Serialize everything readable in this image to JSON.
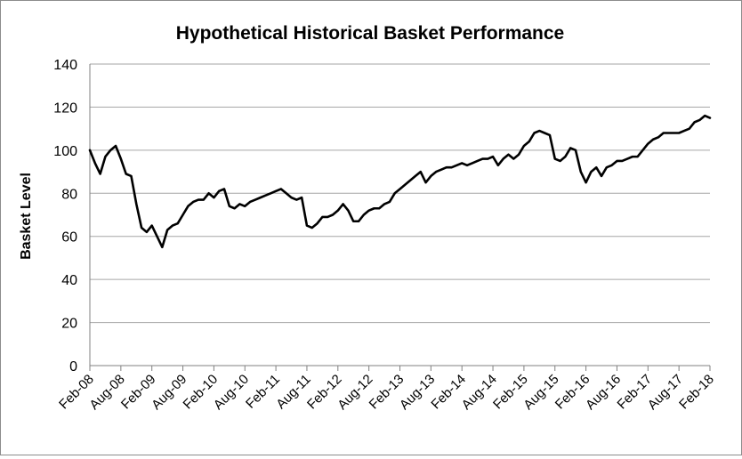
{
  "chart_data": {
    "type": "line",
    "title": "Hypothetical Historical Basket Performance",
    "xlabel": "",
    "ylabel": "Basket Level",
    "ylim": [
      0,
      140
    ],
    "yticks": [
      0,
      20,
      40,
      60,
      80,
      100,
      120,
      140
    ],
    "xticks": [
      "Feb-08",
      "Aug-08",
      "Feb-09",
      "Aug-09",
      "Feb-10",
      "Aug-10",
      "Feb-11",
      "Aug-11",
      "Feb-12",
      "Aug-12",
      "Feb-13",
      "Aug-13",
      "Feb-14",
      "Aug-14",
      "Feb-15",
      "Aug-15",
      "Feb-16",
      "Aug-16",
      "Feb-17",
      "Aug-17",
      "Feb-18"
    ],
    "grid": true,
    "line_color": "#000000",
    "series": [
      {
        "x": [
          "2008-02",
          "2008-03",
          "2008-04",
          "2008-05",
          "2008-06",
          "2008-07",
          "2008-08",
          "2008-09",
          "2008-10",
          "2008-11",
          "2008-12",
          "2009-01",
          "2009-02",
          "2009-03",
          "2009-04",
          "2009-05",
          "2009-06",
          "2009-07",
          "2009-08",
          "2009-09",
          "2009-10",
          "2009-11",
          "2009-12",
          "2010-01",
          "2010-02",
          "2010-03",
          "2010-04",
          "2010-05",
          "2010-06",
          "2010-07",
          "2010-08",
          "2010-09",
          "2010-10",
          "2010-11",
          "2010-12",
          "2011-01",
          "2011-02",
          "2011-03",
          "2011-04",
          "2011-05",
          "2011-06",
          "2011-07",
          "2011-08",
          "2011-09",
          "2011-10",
          "2011-11",
          "2011-12",
          "2012-01",
          "2012-02",
          "2012-03",
          "2012-04",
          "2012-05",
          "2012-06",
          "2012-07",
          "2012-08",
          "2012-09",
          "2012-10",
          "2012-11",
          "2012-12",
          "2013-01",
          "2013-02",
          "2013-03",
          "2013-04",
          "2013-05",
          "2013-06",
          "2013-07",
          "2013-08",
          "2013-09",
          "2013-10",
          "2013-11",
          "2013-12",
          "2014-01",
          "2014-02",
          "2014-03",
          "2014-04",
          "2014-05",
          "2014-06",
          "2014-07",
          "2014-08",
          "2014-09",
          "2014-10",
          "2014-11",
          "2014-12",
          "2015-01",
          "2015-02",
          "2015-03",
          "2015-04",
          "2015-05",
          "2015-06",
          "2015-07",
          "2015-08",
          "2015-09",
          "2015-10",
          "2015-11",
          "2015-12",
          "2016-01",
          "2016-02",
          "2016-03",
          "2016-04",
          "2016-05",
          "2016-06",
          "2016-07",
          "2016-08",
          "2016-09",
          "2016-10",
          "2016-11",
          "2016-12",
          "2017-01",
          "2017-02",
          "2017-03",
          "2017-04",
          "2017-05",
          "2017-06",
          "2017-07",
          "2017-08",
          "2017-09",
          "2017-10",
          "2017-11",
          "2017-12",
          "2018-01",
          "2018-02"
        ],
        "values": [
          100,
          94,
          89,
          97,
          100,
          102,
          96,
          89,
          88,
          75,
          64,
          62,
          65,
          60,
          55,
          63,
          65,
          66,
          70,
          74,
          76,
          77,
          77,
          80,
          78,
          81,
          82,
          74,
          73,
          75,
          74,
          76,
          77,
          78,
          79,
          80,
          81,
          82,
          80,
          78,
          77,
          78,
          65,
          64,
          66,
          69,
          69,
          70,
          72,
          75,
          72,
          67,
          67,
          70,
          72,
          73,
          73,
          75,
          76,
          80,
          82,
          84,
          86,
          88,
          90,
          85,
          88,
          90,
          91,
          92,
          92,
          93,
          94,
          93,
          94,
          95,
          96,
          96,
          97,
          93,
          96,
          98,
          96,
          98,
          102,
          104,
          108,
          109,
          108,
          107,
          96,
          95,
          97,
          101,
          100,
          90,
          85,
          90,
          92,
          88,
          92,
          93,
          95,
          95,
          96,
          97,
          97,
          100,
          103,
          105,
          106,
          108,
          108,
          108,
          108,
          109,
          110,
          113,
          114,
          116,
          115
        ]
      }
    ]
  }
}
